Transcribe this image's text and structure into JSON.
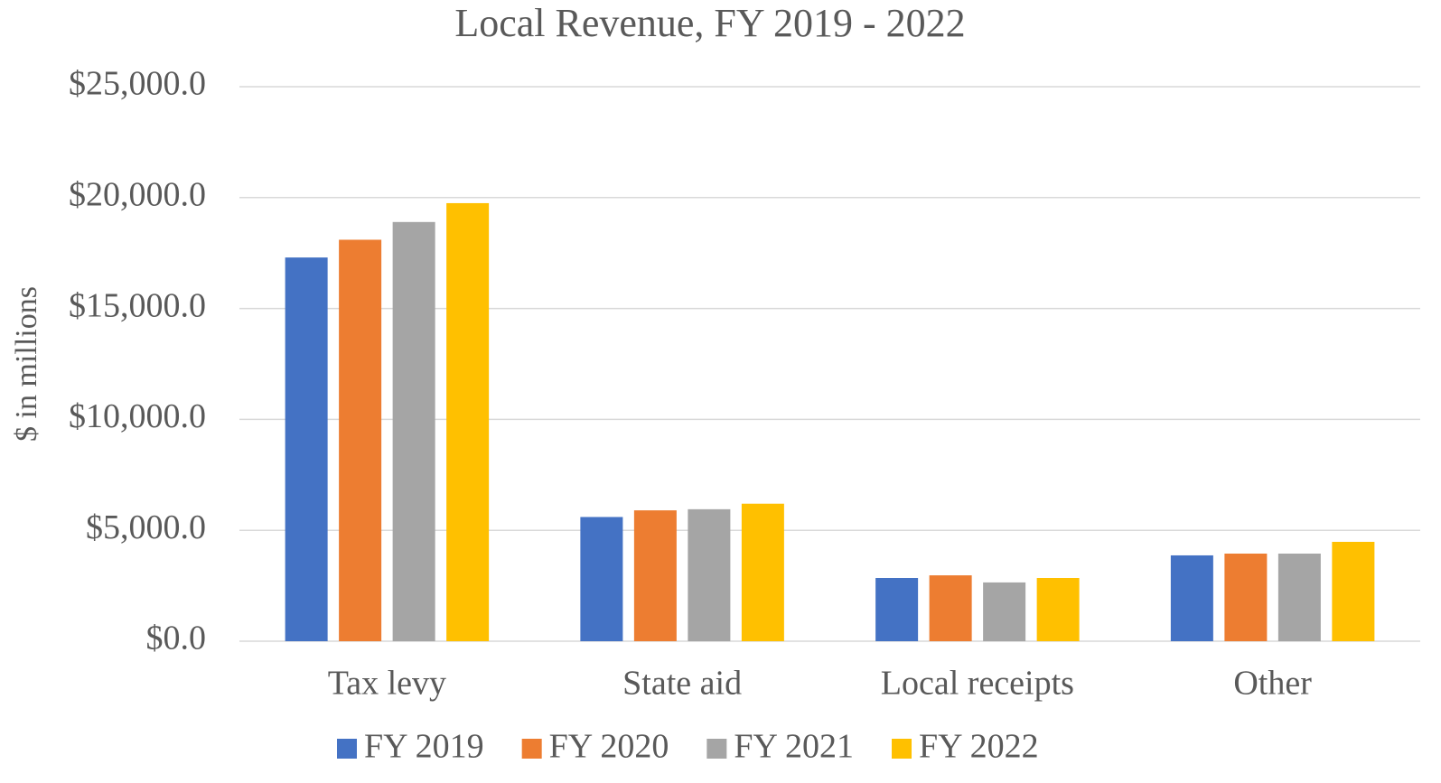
{
  "chart_data": {
    "type": "bar",
    "title": "Local Revenue, FY 2019 - 2022",
    "y_label": "$ in millions",
    "categories": [
      "Tax levy",
      "State aid",
      "Local receipts",
      "Other"
    ],
    "series": [
      {
        "name": "FY 2019",
        "color": "#4472c4",
        "values": [
          17300,
          5600,
          2850,
          3870
        ]
      },
      {
        "name": "FY 2020",
        "color": "#ed7d31",
        "values": [
          18100,
          5900,
          2970,
          3950
        ]
      },
      {
        "name": "FY 2021",
        "color": "#a5a5a5",
        "values": [
          18900,
          5950,
          2650,
          3950
        ]
      },
      {
        "name": "FY 2022",
        "color": "#ffc000",
        "values": [
          19750,
          6200,
          2850,
          4480
        ]
      }
    ],
    "ylim": [
      0,
      25000
    ],
    "yticks": [
      {
        "value": 0,
        "label": "$0.0"
      },
      {
        "value": 5000,
        "label": "$5,000.0"
      },
      {
        "value": 10000,
        "label": "$10,000.0"
      },
      {
        "value": 15000,
        "label": "$15,000.0"
      },
      {
        "value": 20000,
        "label": "$20,000.0"
      },
      {
        "value": 25000,
        "label": "$25,000.0"
      }
    ],
    "grid": true,
    "legend": "bottom"
  }
}
